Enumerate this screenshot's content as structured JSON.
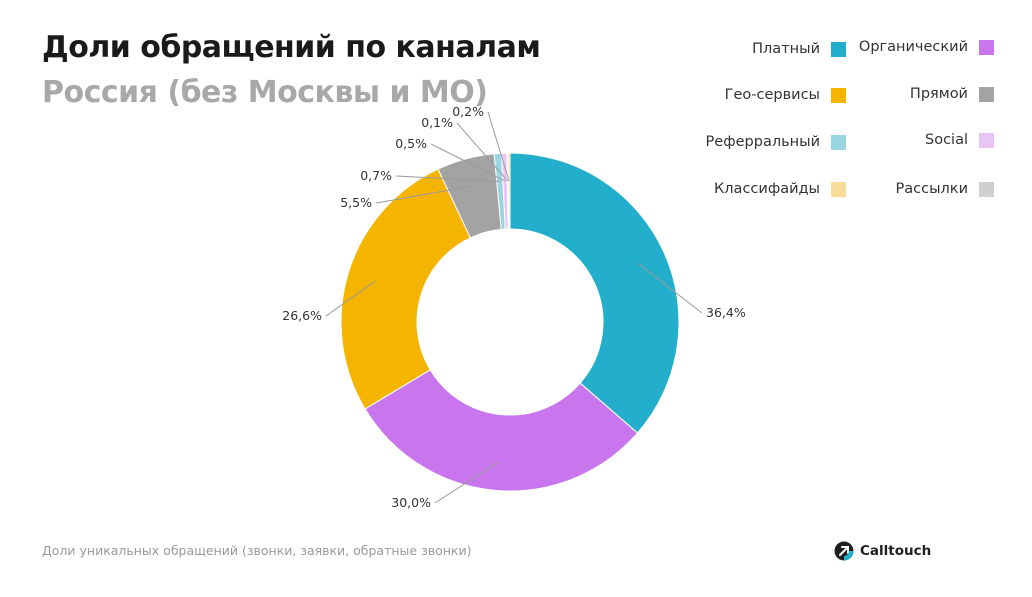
{
  "header": {
    "title": "Доли обращений по каналам",
    "subtitle": "Россия (без Москвы и МО)"
  },
  "footnote": "Доли уникальных обращений (звонки, заявки, обратные звонки)",
  "brand": {
    "name": "Calltouch",
    "icon": "calltouch-logo-icon"
  },
  "legend": [
    {
      "label": "Платный",
      "color": "#23afcc"
    },
    {
      "label": "Органический",
      "color": "#c976ee"
    },
    {
      "label": "Гео-сервисы",
      "color": "#f4b400"
    },
    {
      "label": "Прямой",
      "color": "#a3a3a3"
    },
    {
      "label": "Реферральный",
      "color": "#9ad6e2"
    },
    {
      "label": "Social",
      "color": "#e8c4f7"
    },
    {
      "label": "Классифайды",
      "color": "#f9dc99"
    },
    {
      "label": "Рассылки",
      "color": "#cfcfcf"
    }
  ],
  "chart_data": {
    "type": "pie",
    "donut": true,
    "legend_position": "top-right",
    "slices": [
      {
        "name": "Платный",
        "value": 36.4,
        "label": "36,4%",
        "color": "#23afcc"
      },
      {
        "name": "Органический",
        "value": 30.0,
        "label": "30,0%",
        "color": "#c976ee"
      },
      {
        "name": "Гео-сервисы",
        "value": 26.6,
        "label": "26,6%",
        "color": "#f4b400"
      },
      {
        "name": "Прямой",
        "value": 5.5,
        "label": "5,5%",
        "color": "#a3a3a3"
      },
      {
        "name": "Реферральный",
        "value": 0.7,
        "label": "0,7%",
        "color": "#9ad6e2"
      },
      {
        "name": "Social",
        "value": 0.5,
        "label": "0,5%",
        "color": "#e8c4f7"
      },
      {
        "name": "Рассылки",
        "value": 0.1,
        "label": "0,1%",
        "color": "#cfcfcf"
      },
      {
        "name": "Классифайды",
        "value": 0.2,
        "label": "0,2%",
        "color": "#f9dc99"
      }
    ]
  }
}
